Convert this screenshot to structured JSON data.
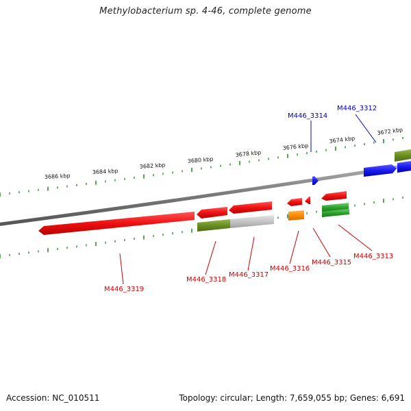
{
  "title": "Methylobacterium sp. 4-46, complete genome",
  "footer": {
    "accession": "Accession: NC_010511",
    "summary": "Topology: circular; Length: 7,659,055 bp; Genes: 6,691"
  },
  "colors": {
    "backbone": "#777777",
    "tick": "#2e8b2e",
    "forward_label": "#0000bb",
    "reverse_label": "#cc0000",
    "gene_red": "#ee1111",
    "gene_blue": "#1a1aee",
    "gene_olive": "#6b8e23",
    "gene_gray": "#bdbdbd",
    "gene_orange": "#ff8c00",
    "gene_green": "#2ca02c"
  },
  "scale_labels": [
    "3686 kbp",
    "3684 kbp",
    "3682 kbp",
    "3680 kbp",
    "3678 kbp",
    "3676 kbp",
    "3674 kbp",
    "3672 kbp"
  ],
  "gene_labels": {
    "forward": [
      "M446_3314",
      "M446_3312"
    ],
    "reverse": [
      "M446_3319",
      "M446_3318",
      "M446_3317",
      "M446_3316",
      "M446_3315",
      "M446_3313"
    ]
  },
  "genes": [
    {
      "strand": "reverse",
      "color_key": "gene_red"
    },
    {
      "strand": "reverse",
      "color_key": "gene_red"
    },
    {
      "strand": "reverse",
      "color_key": "gene_red"
    },
    {
      "strand": "reverse",
      "color_key": "gene_red"
    },
    {
      "strand": "reverse",
      "color_key": "gene_red"
    },
    {
      "strand": "reverse",
      "color_key": "gene_red"
    },
    {
      "strand": "reverse",
      "color_key": "gene_olive"
    },
    {
      "strand": "reverse",
      "color_key": "gene_gray"
    },
    {
      "strand": "reverse",
      "color_key": "gene_orange"
    },
    {
      "strand": "reverse",
      "color_key": "gene_green"
    },
    {
      "strand": "reverse",
      "color_key": "gene_green"
    },
    {
      "strand": "forward",
      "color_key": "gene_blue"
    },
    {
      "strand": "forward",
      "color_key": "gene_blue"
    },
    {
      "strand": "forward",
      "color_key": "gene_blue"
    },
    {
      "strand": "forward",
      "color_key": "gene_olive"
    }
  ]
}
